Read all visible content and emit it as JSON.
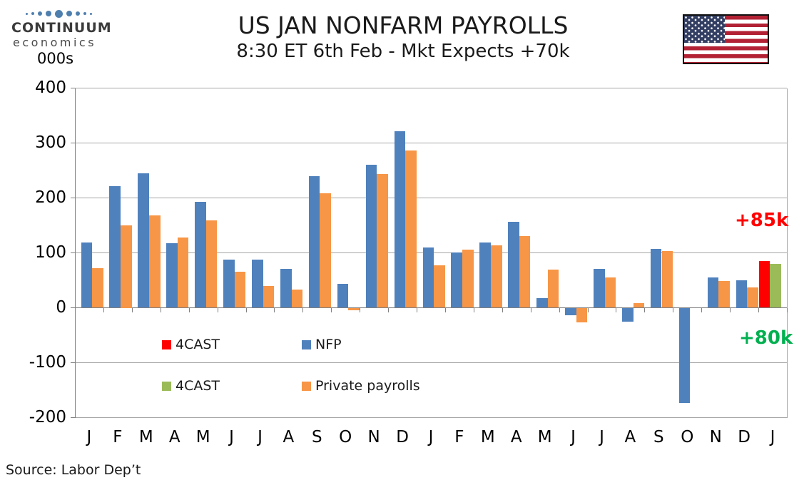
{
  "logo": {
    "line1": "CONTINUUM",
    "line2": "economics",
    "dot_color": "#4E7FAE"
  },
  "units_label": "000s",
  "title": "US JAN NONFARM PAYROLLS",
  "subtitle": "8:30 ET 6th Feb - Mkt Expects +70k",
  "source": "Source: Labor Dep’t",
  "chart_data": {
    "type": "bar",
    "title": "US JAN NONFARM PAYROLLS",
    "subtitle": "8:30 ET 6th Feb - Mkt Expects +70k",
    "ylabel": "000s",
    "ylim": [
      -200,
      400
    ],
    "ytick_step": 100,
    "grid": true,
    "categories": [
      "J",
      "F",
      "M",
      "A",
      "M",
      "J",
      "J",
      "A",
      "S",
      "O",
      "N",
      "D",
      "J",
      "F",
      "M",
      "A",
      "M",
      "J",
      "J",
      "A",
      "S",
      "O",
      "N",
      "D",
      "J"
    ],
    "series": [
      {
        "name": "NFP",
        "color": "#4F81BD",
        "slot": 0,
        "values": [
          119,
          222,
          245,
          118,
          193,
          88,
          88,
          71,
          239,
          43,
          261,
          322,
          110,
          101,
          119,
          157,
          17,
          -13,
          71,
          -25,
          107,
          -173,
          55,
          50,
          null
        ]
      },
      {
        "name": "Private payrolls",
        "color": "#F79646",
        "slot": 1,
        "values": [
          72,
          150,
          168,
          128,
          159,
          66,
          40,
          33,
          208,
          -4,
          244,
          286,
          77,
          106,
          114,
          131,
          69,
          -26,
          55,
          9,
          103,
          null,
          49,
          37,
          null
        ]
      },
      {
        "name": "4CAST",
        "color": "#FF0000",
        "slot": 2,
        "values": [
          null,
          null,
          null,
          null,
          null,
          null,
          null,
          null,
          null,
          null,
          null,
          null,
          null,
          null,
          null,
          null,
          null,
          null,
          null,
          null,
          null,
          null,
          null,
          null,
          85
        ]
      },
      {
        "name": "4CAST",
        "color": "#9BBB59",
        "slot": 3,
        "values": [
          null,
          null,
          null,
          null,
          null,
          null,
          null,
          null,
          null,
          null,
          null,
          null,
          null,
          null,
          null,
          null,
          null,
          null,
          null,
          null,
          null,
          null,
          null,
          null,
          80
        ]
      }
    ],
    "legend": [
      {
        "label": "4CAST",
        "color": "#FF0000"
      },
      {
        "label": "NFP",
        "color": "#4F81BD"
      },
      {
        "label": "4CAST",
        "color": "#9BBB59"
      },
      {
        "label": "Private payrolls",
        "color": "#F79646"
      }
    ],
    "legend_position": "inside-bottom-left",
    "annotations": [
      {
        "text": "+85k",
        "color": "#FF0000"
      },
      {
        "text": "+80k",
        "color": "#00B050"
      }
    ]
  }
}
